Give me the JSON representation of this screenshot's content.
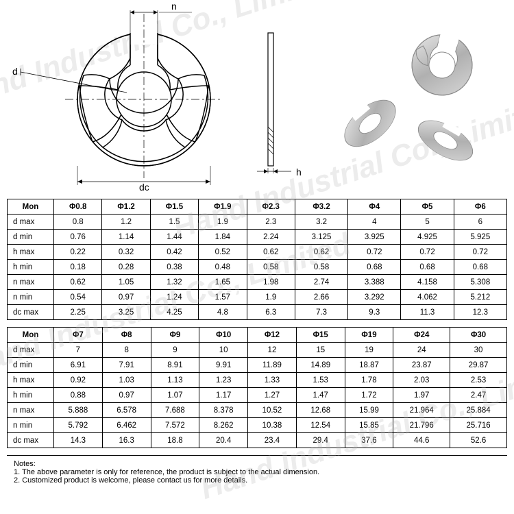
{
  "diagram": {
    "labels": {
      "n": "n",
      "d": "d",
      "dc": "dc",
      "h": "h"
    },
    "stroke": "#000000",
    "fill": "#ffffff",
    "clip_color": "#c8c8c8"
  },
  "tables": [
    {
      "header_label": "Mon",
      "columns": [
        "Φ0.8",
        "Φ1.2",
        "Φ1.5",
        "Φ1.9",
        "Φ2.3",
        "Φ3.2",
        "Φ4",
        "Φ5",
        "Φ6"
      ],
      "rows": [
        {
          "label": "d max",
          "cells": [
            "0.8",
            "1.2",
            "1.5",
            "1.9",
            "2.3",
            "3.2",
            "4",
            "5",
            "6"
          ]
        },
        {
          "label": "d min",
          "cells": [
            "0.76",
            "1.14",
            "1.44",
            "1.84",
            "2.24",
            "3.125",
            "3.925",
            "4.925",
            "5.925"
          ]
        },
        {
          "label": "h max",
          "cells": [
            "0.22",
            "0.32",
            "0.42",
            "0.52",
            "0.62",
            "0.62",
            "0.72",
            "0.72",
            "0.72"
          ]
        },
        {
          "label": "h min",
          "cells": [
            "0.18",
            "0.28",
            "0.38",
            "0.48",
            "0.58",
            "0.58",
            "0.68",
            "0.68",
            "0.68"
          ]
        },
        {
          "label": "n max",
          "cells": [
            "0.62",
            "1.05",
            "1.32",
            "1.65",
            "1.98",
            "2.74",
            "3.388",
            "4.158",
            "5.308"
          ]
        },
        {
          "label": "n min",
          "cells": [
            "0.54",
            "0.97",
            "1.24",
            "1.57",
            "1.9",
            "2.66",
            "3.292",
            "4.062",
            "5.212"
          ]
        },
        {
          "label": "dc max",
          "cells": [
            "2.25",
            "3.25",
            "4.25",
            "4.8",
            "6.3",
            "7.3",
            "9.3",
            "11.3",
            "12.3"
          ]
        }
      ]
    },
    {
      "header_label": "Mon",
      "columns": [
        "Φ7",
        "Φ8",
        "Φ9",
        "Φ10",
        "Φ12",
        "Φ15",
        "Φ19",
        "Φ24",
        "Φ30"
      ],
      "rows": [
        {
          "label": "d max",
          "cells": [
            "7",
            "8",
            "9",
            "10",
            "12",
            "15",
            "19",
            "24",
            "30"
          ]
        },
        {
          "label": "d min",
          "cells": [
            "6.91",
            "7.91",
            "8.91",
            "9.91",
            "11.89",
            "14.89",
            "18.87",
            "23.87",
            "29.87"
          ]
        },
        {
          "label": "h max",
          "cells": [
            "0.92",
            "1.03",
            "1.13",
            "1.23",
            "1.33",
            "1.53",
            "1.78",
            "2.03",
            "2.53"
          ]
        },
        {
          "label": "h min",
          "cells": [
            "0.88",
            "0.97",
            "1.07",
            "1.17",
            "1.27",
            "1.47",
            "1.72",
            "1.97",
            "2.47"
          ]
        },
        {
          "label": "n max",
          "cells": [
            "5.888",
            "6.578",
            "7.688",
            "8.378",
            "10.52",
            "12.68",
            "15.99",
            "21.964",
            "25.884"
          ]
        },
        {
          "label": "n min",
          "cells": [
            "5.792",
            "6.462",
            "7.572",
            "8.262",
            "10.38",
            "12.54",
            "15.85",
            "21.796",
            "25.716"
          ]
        },
        {
          "label": "dc max",
          "cells": [
            "14.3",
            "16.3",
            "18.8",
            "20.4",
            "23.4",
            "29.4",
            "37.6",
            "44.6",
            "52.6"
          ]
        }
      ]
    }
  ],
  "notes": {
    "title": "Notes:",
    "lines": [
      "1. The above parameter is only for reference, the product is subject to the actual dimension.",
      "2. Customized product is welcome, please contact us for more details."
    ]
  },
  "watermark": "Hand Industrial Co., Limited"
}
